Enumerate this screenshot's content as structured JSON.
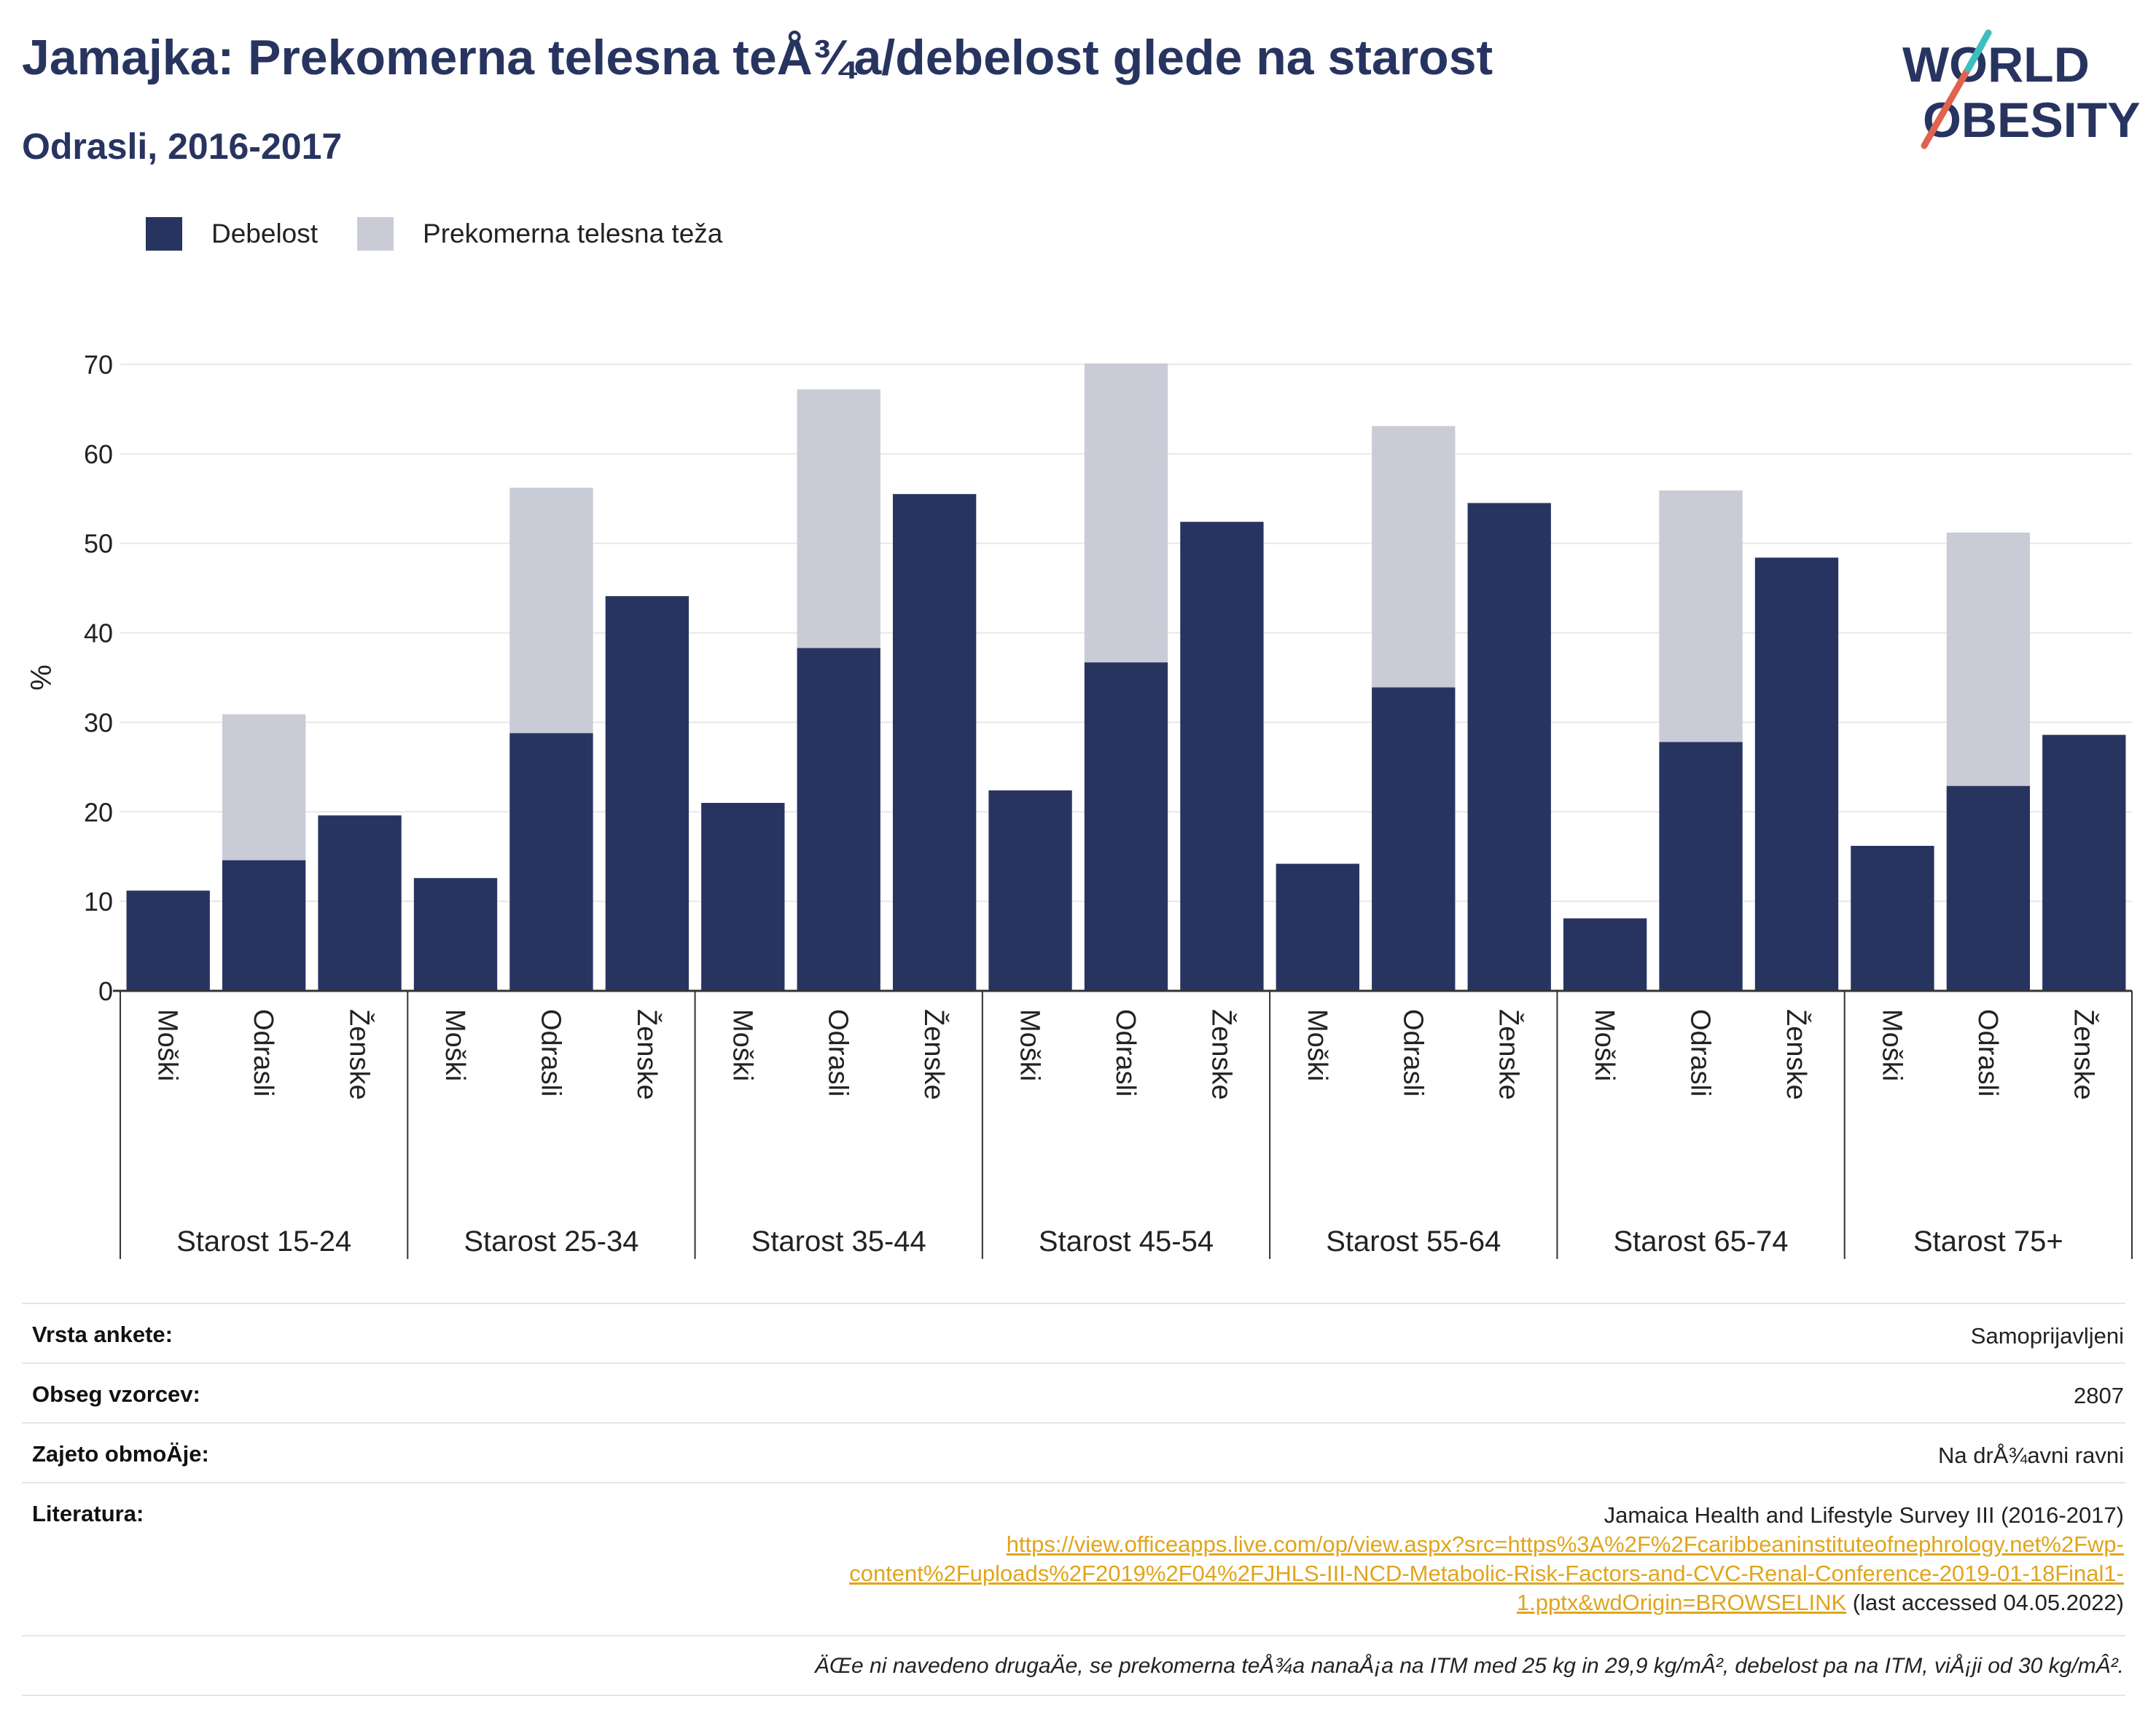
{
  "title": "Jamajka: Prekomerna telesna teÅ¾a/debelost glede na starost",
  "subtitle": "Odrasli, 2016-2017",
  "logo": {
    "line1": "WORLD",
    "line2": "OBESITY"
  },
  "colors": {
    "obesity": "#283460",
    "overweight": "#c9cbd7",
    "title": "#283460",
    "link": "#e0a51c"
  },
  "legend": {
    "obesity": "Debelost",
    "overweight": "Prekomerna telesna teža"
  },
  "chart_data": {
    "type": "bar",
    "stacked": true,
    "ylabel": "%",
    "ylim": [
      0,
      70
    ],
    "yticks": [
      0,
      10,
      20,
      30,
      40,
      50,
      60,
      70
    ],
    "grid": true,
    "legend_position": "top-left",
    "groups": [
      "Starost 15-24",
      "Starost 25-34",
      "Starost 35-44",
      "Starost 45-54",
      "Starost 55-64",
      "Starost 65-74",
      "Starost 75+"
    ],
    "subcategories": [
      "Moški",
      "Odrasli",
      "Ženske"
    ],
    "series": [
      {
        "name": "Debelost",
        "values": [
          [
            11.2,
            14.6,
            19.6
          ],
          [
            12.6,
            28.8,
            44.1
          ],
          [
            21.0,
            38.3,
            55.5
          ],
          [
            22.4,
            36.7,
            52.4
          ],
          [
            14.2,
            33.9,
            54.5
          ],
          [
            8.1,
            27.8,
            48.4
          ],
          [
            16.2,
            22.9,
            28.6
          ]
        ]
      },
      {
        "name": "Prekomerna telesna teža",
        "values": [
          [
            null,
            16.3,
            null
          ],
          [
            null,
            27.4,
            null
          ],
          [
            null,
            28.9,
            null
          ],
          [
            null,
            33.4,
            null
          ],
          [
            null,
            29.2,
            null
          ],
          [
            null,
            28.1,
            null
          ],
          [
            null,
            28.3,
            null
          ]
        ]
      }
    ]
  },
  "info": {
    "survey_type_label": "Vrsta ankete:",
    "survey_type_value": "Samoprijavljeni",
    "sample_label": "Obseg vzorcev:",
    "sample_value": "2807",
    "area_label": "Zajeto obmoÄ\u001fje:",
    "area_value": "Na drÅ¾avni ravni",
    "lit_label": "Literatura:",
    "lit_source": "Jamaica Health and Lifestyle Survey III (2016-2017)",
    "lit_url_1": "https://view.officeapps.live.com/op/view.aspx?src=https%3A%2F%2Fcaribbeaninstituteofnephrology.net%2Fwp-",
    "lit_url_2": "content%2Fuploads%2F2019%2F04%2FJHLS-III-NCD-Metabolic-Risk-Factors-and-CVC-Renal-Conference-2019-01-18Final1-",
    "lit_url_3": "1.pptx&wdOrigin=BROWSELINK",
    "lit_accessed": " (last accessed 04.05.2022)",
    "note": "ÄŒe ni navedeno drugaÄ\u001fe, se prekomerna teÅ¾a nanaÅ¡a na ITM med 25 kg in 29,9 kg/mÂ², debelost pa na ITM, viÅ¡ji od 30 kg/mÂ²."
  }
}
